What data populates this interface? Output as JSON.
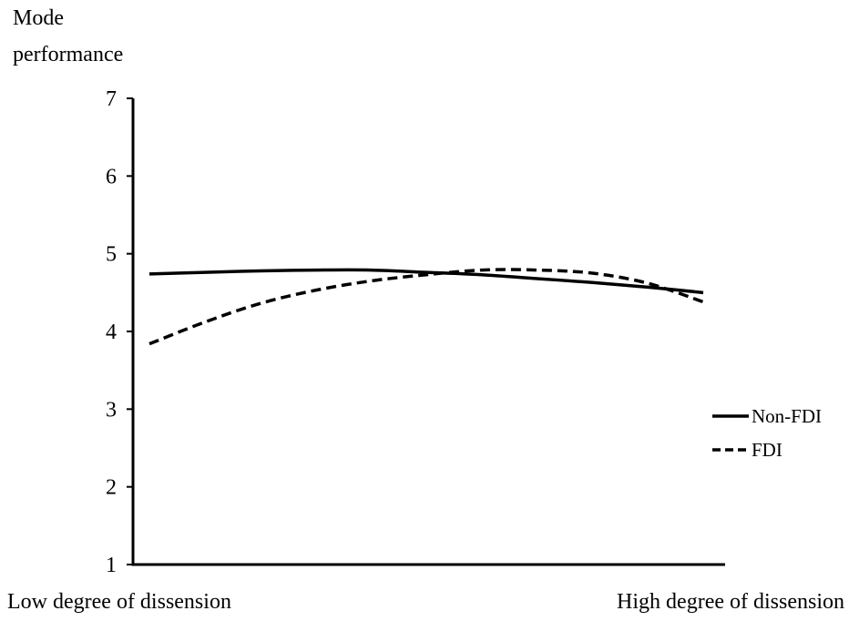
{
  "chart_data": {
    "type": "line",
    "title": "",
    "ylabel_lines": [
      "Mode",
      "performance"
    ],
    "xlabel": "",
    "x_end_labels": {
      "low": "Low degree of dissension",
      "high": "High degree of dissension"
    },
    "ylim": [
      1,
      7
    ],
    "yticks": [
      1,
      2,
      3,
      4,
      5,
      6,
      7
    ],
    "ytick_labels": [
      "1",
      "2",
      "3",
      "4",
      "5",
      "6",
      "7"
    ],
    "grid": false,
    "legend_position": "right",
    "x": [
      0,
      0.1,
      0.2,
      0.3,
      0.4,
      0.5,
      0.6,
      0.7,
      0.8,
      0.9,
      1.0
    ],
    "series": [
      {
        "name": "Non-FDI",
        "style": "solid",
        "color": "#000000",
        "values": [
          4.74,
          4.76,
          4.78,
          4.79,
          4.79,
          4.76,
          4.73,
          4.68,
          4.63,
          4.57,
          4.5
        ]
      },
      {
        "name": "FDI",
        "style": "dashed",
        "color": "#000000",
        "values": [
          3.84,
          4.12,
          4.36,
          4.53,
          4.65,
          4.73,
          4.79,
          4.79,
          4.75,
          4.62,
          4.38
        ]
      }
    ]
  }
}
